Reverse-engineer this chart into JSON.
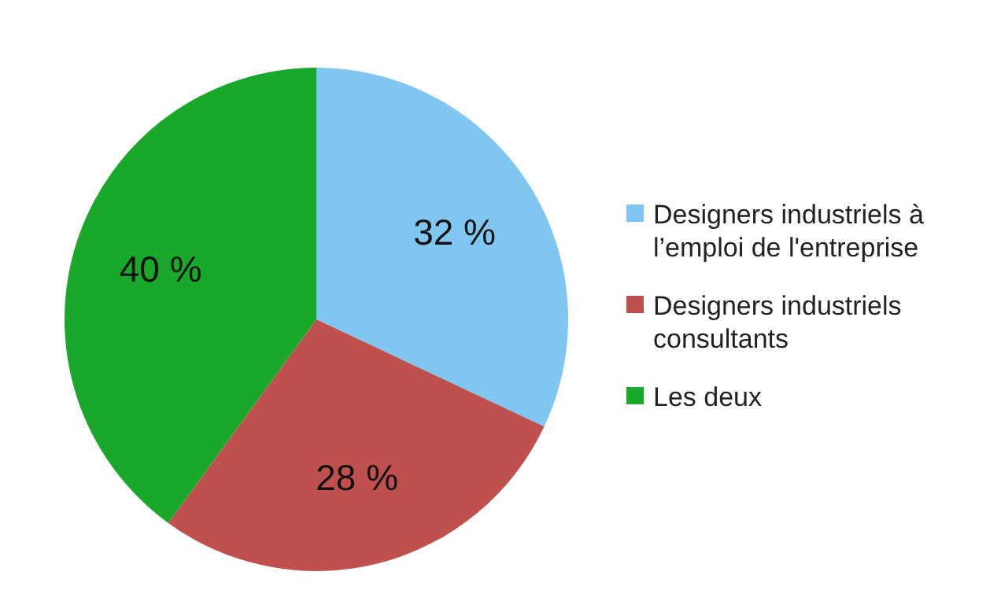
{
  "chart_data": {
    "type": "pie",
    "categories": [
      "Designers industriels à l’emploi de l'entreprise",
      "Designers industriels consultants",
      "Les deux"
    ],
    "values": [
      32,
      28,
      40
    ],
    "colors": [
      "#7fc7f0",
      "#c0504d",
      "#1aa82a"
    ],
    "value_labels": [
      "32 %",
      "28 %",
      "40 %"
    ],
    "legend": "right"
  }
}
